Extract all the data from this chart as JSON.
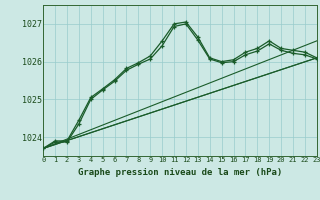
{
  "title": "Graphe pression niveau de la mer (hPa)",
  "bg_color": "#cce8e4",
  "grid_color": "#99cccc",
  "line_color": "#1a5c2a",
  "x_min": 0,
  "x_max": 23,
  "y_min": 1023.5,
  "y_max": 1027.5,
  "y_ticks": [
    1024,
    1025,
    1026,
    1027
  ],
  "x_ticks": [
    0,
    1,
    2,
    3,
    4,
    5,
    6,
    7,
    8,
    9,
    10,
    11,
    12,
    13,
    14,
    15,
    16,
    17,
    18,
    19,
    20,
    21,
    22,
    23
  ],
  "series1_x": [
    0,
    1,
    2,
    3,
    4,
    5,
    6,
    7,
    8,
    9,
    10,
    11,
    12,
    13,
    14,
    15,
    16,
    17,
    18,
    19,
    20,
    21,
    22,
    23
  ],
  "series1_y": [
    1023.7,
    1023.9,
    1023.9,
    1024.45,
    1025.05,
    1025.28,
    1025.52,
    1025.82,
    1025.97,
    1026.15,
    1026.55,
    1027.0,
    1027.05,
    1026.65,
    1026.1,
    1026.0,
    1026.05,
    1026.25,
    1026.35,
    1026.55,
    1026.35,
    1026.3,
    1026.25,
    1026.1
  ],
  "series2_x": [
    0,
    1,
    2,
    3,
    4,
    5,
    6,
    7,
    8,
    9,
    10,
    11,
    12,
    13,
    14,
    15,
    16,
    17,
    18,
    19,
    20,
    21,
    22,
    23
  ],
  "series2_y": [
    1023.7,
    1023.87,
    1023.87,
    1024.35,
    1025.0,
    1025.25,
    1025.48,
    1025.77,
    1025.93,
    1026.07,
    1026.42,
    1026.93,
    1027.0,
    1026.57,
    1026.07,
    1025.97,
    1026.0,
    1026.18,
    1026.28,
    1026.47,
    1026.3,
    1026.22,
    1026.18,
    1026.07
  ],
  "series3_x": [
    0,
    23
  ],
  "series3_y": [
    1023.7,
    1026.55
  ],
  "series4_x": [
    0,
    23
  ],
  "series4_y": [
    1023.7,
    1026.1
  ],
  "series5_x": [
    0,
    23
  ],
  "series5_y": [
    1023.7,
    1026.1
  ]
}
